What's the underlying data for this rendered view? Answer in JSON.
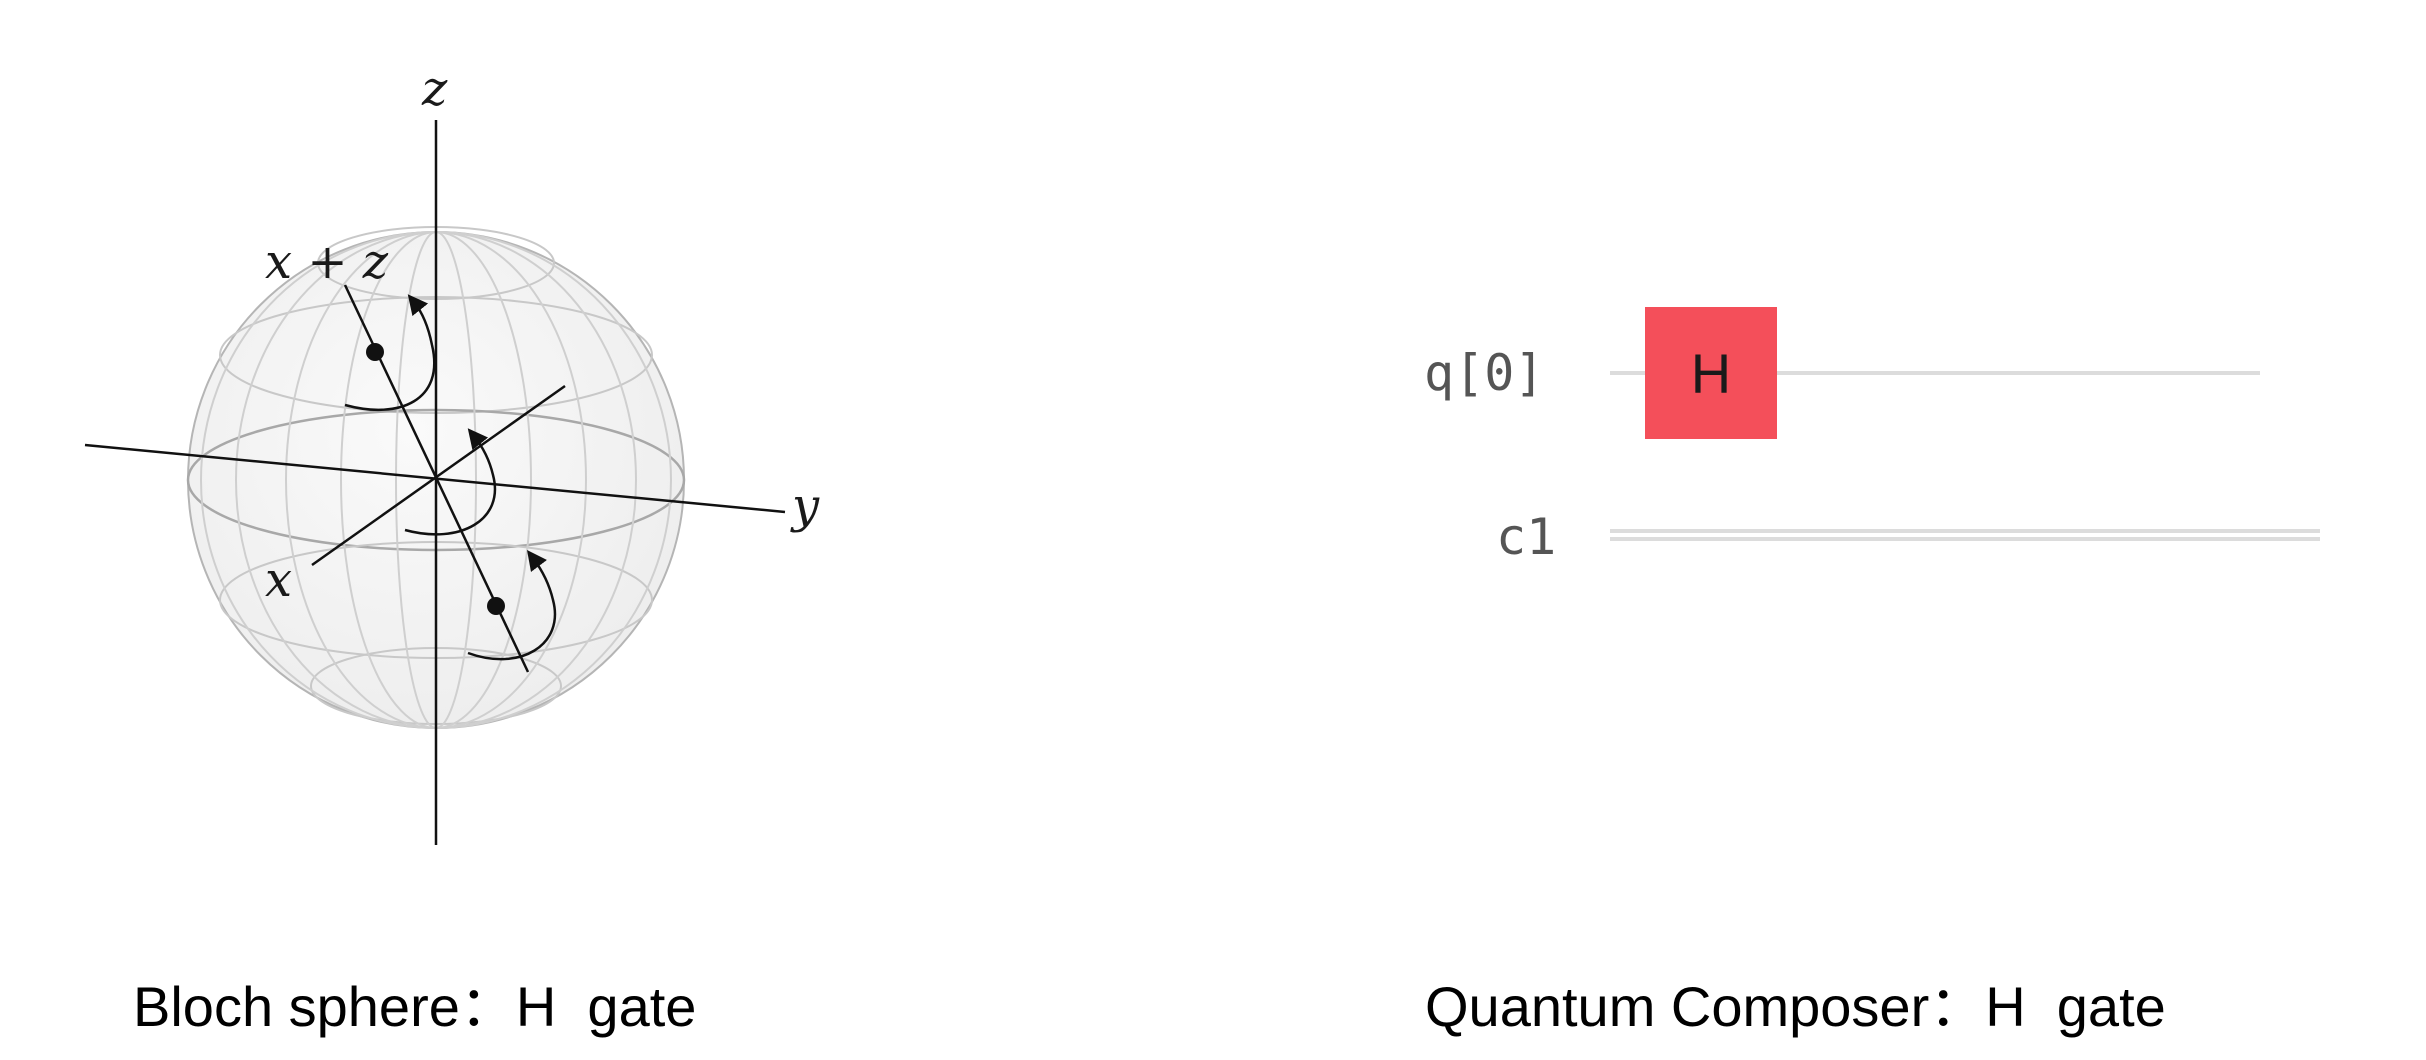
{
  "bloch_sphere": {
    "axes": {
      "z": "z",
      "y": "y",
      "x": "x",
      "x_plus_z": "x + z"
    }
  },
  "circuit": {
    "qubit_label": "q[0]",
    "classical_label": "c1",
    "gate_label": "H",
    "gate_color": "#f44f5a",
    "wire_color": "#dcdcdc"
  },
  "captions": {
    "left": "Bloch sphere：H  gate",
    "right": "Quantum Composer：H  gate"
  }
}
